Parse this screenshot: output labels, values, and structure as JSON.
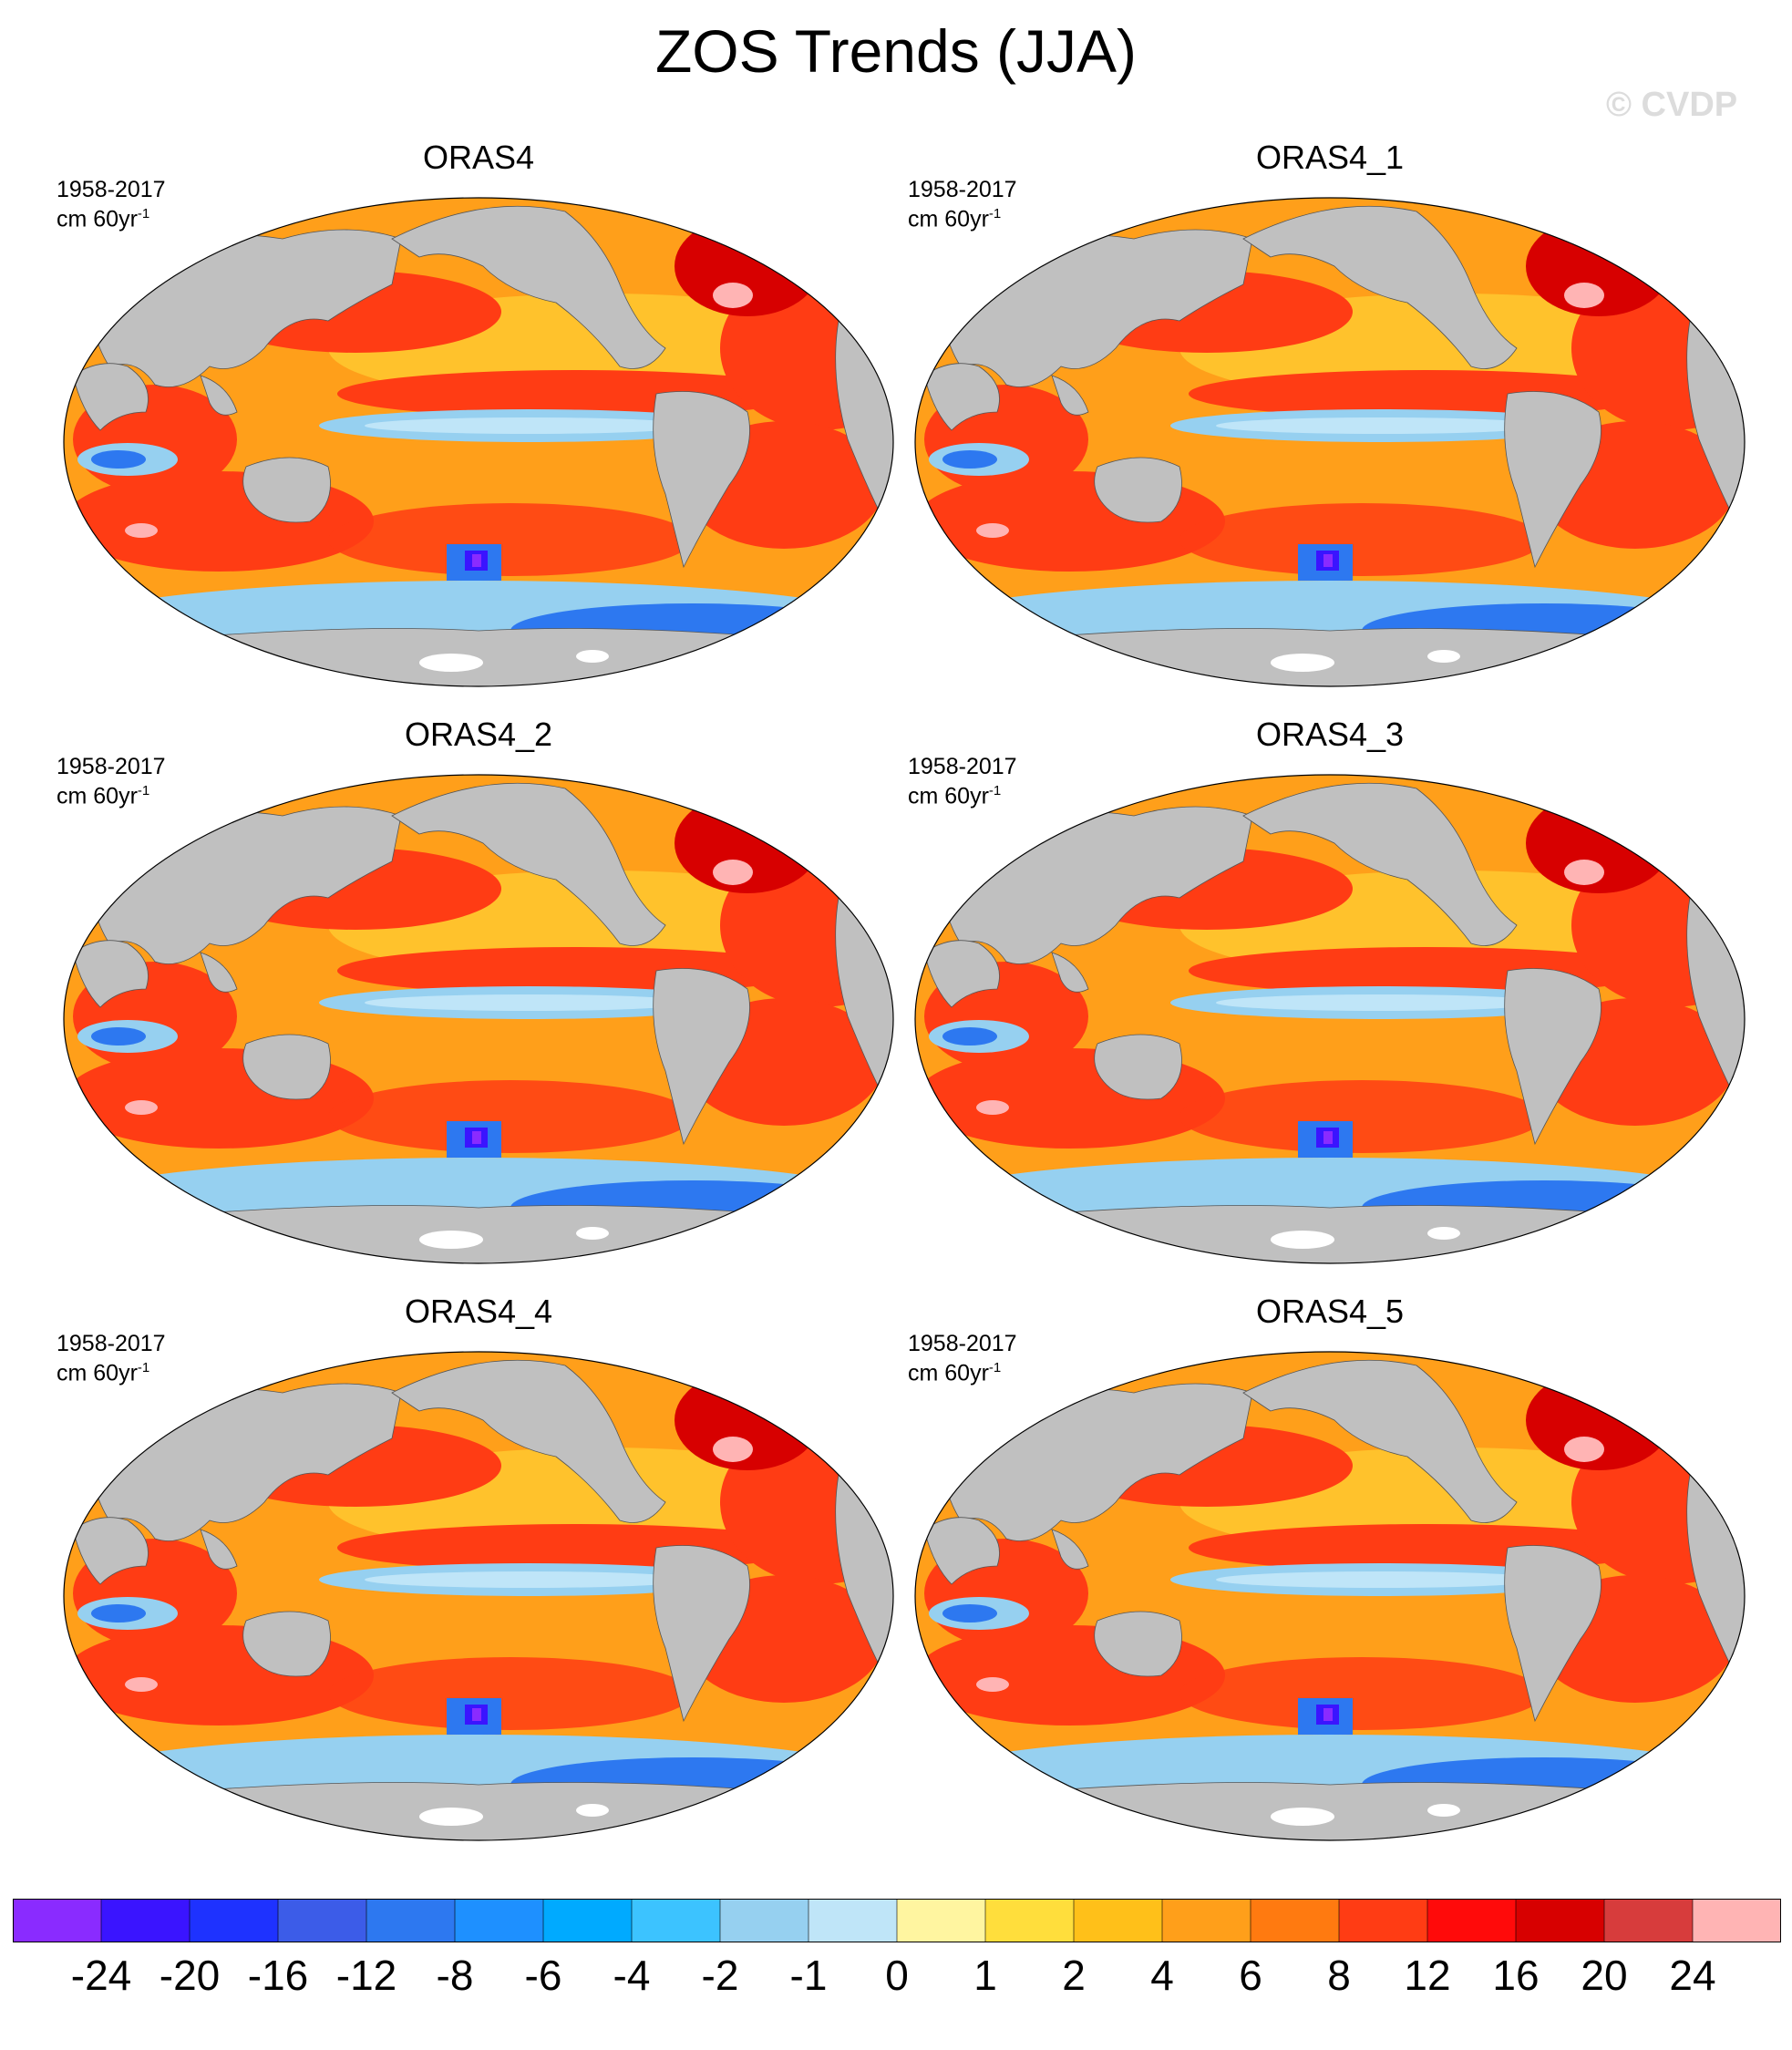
{
  "title": "ZOS Trends (JJA)",
  "watermark": "© CVDP",
  "panels": [
    {
      "title": "ORAS4",
      "period": "1958-2017",
      "units_base": "cm 60yr",
      "units_exp": "-1"
    },
    {
      "title": "ORAS4_1",
      "period": "1958-2017",
      "units_base": "cm 60yr",
      "units_exp": "-1"
    },
    {
      "title": "ORAS4_2",
      "period": "1958-2017",
      "units_base": "cm 60yr",
      "units_exp": "-1"
    },
    {
      "title": "ORAS4_3",
      "period": "1958-2017",
      "units_base": "cm 60yr",
      "units_exp": "-1"
    },
    {
      "title": "ORAS4_4",
      "period": "1958-2017",
      "units_base": "cm 60yr",
      "units_exp": "-1"
    },
    {
      "title": "ORAS4_5",
      "period": "1958-2017",
      "units_base": "cm 60yr",
      "units_exp": "-1"
    }
  ],
  "colorbar": {
    "colors": [
      "#8a2bff",
      "#3a14ff",
      "#1e32ff",
      "#3c5ce8",
      "#2d78f0",
      "#1e90ff",
      "#00aaff",
      "#3cc3ff",
      "#96d0f0",
      "#bfe5f8",
      "#fff5a0",
      "#ffde3c",
      "#ffc019",
      "#ff9f1a",
      "#ff7a10",
      "#ff3c14",
      "#ff0a0a",
      "#d70000",
      "#d73c3c",
      "#ffb4b4"
    ],
    "labels": [
      "-24",
      "-20",
      "-16",
      "-12",
      "-8",
      "-6",
      "-4",
      "-2",
      "-1",
      "0",
      "1",
      "2",
      "4",
      "6",
      "8",
      "12",
      "16",
      "20",
      "24"
    ]
  },
  "map_colors": {
    "land": "#c0c0c0",
    "warm": "#ff9f1a",
    "hot": "#ff3c14",
    "very_hot": "#d70000",
    "pink": "#ffb4b4",
    "yellow": "#ffde3c",
    "light_blue": "#96d0f0",
    "blue": "#2d78f0",
    "deep_blue": "#3a14ff",
    "purple": "#8a2bff"
  }
}
